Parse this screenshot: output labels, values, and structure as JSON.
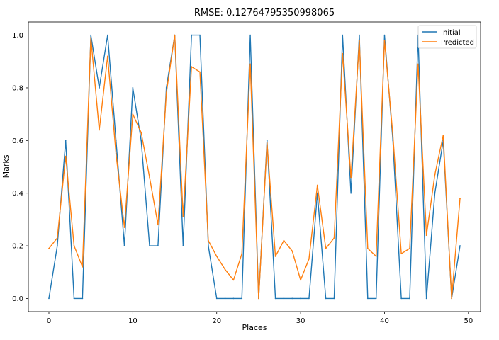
{
  "chart_data": {
    "type": "line",
    "title": "RMSE: 0.12764795350998065",
    "xlabel": "Places",
    "ylabel": "Marks",
    "xlim": [
      -2.45,
      51.45
    ],
    "ylim": [
      -0.05,
      1.05
    ],
    "xticks": [
      0,
      10,
      20,
      30,
      40,
      50
    ],
    "xtick_labels": [
      "0",
      "10",
      "20",
      "30",
      "40",
      "50"
    ],
    "yticks": [
      0.0,
      0.2,
      0.4,
      0.6,
      0.8,
      1.0
    ],
    "ytick_labels": [
      "0.0",
      "0.2",
      "0.4",
      "0.6",
      "0.8",
      "1.0"
    ],
    "grid": false,
    "legend_position": "top-right",
    "x": [
      0,
      1,
      2,
      3,
      4,
      5,
      6,
      7,
      8,
      9,
      10,
      11,
      12,
      13,
      14,
      15,
      16,
      17,
      18,
      19,
      20,
      21,
      22,
      23,
      24,
      25,
      26,
      27,
      28,
      29,
      30,
      31,
      32,
      33,
      34,
      35,
      36,
      37,
      38,
      39,
      40,
      41,
      42,
      43,
      44,
      45,
      46,
      47,
      48,
      49
    ],
    "series": [
      {
        "name": "Initial",
        "color": "#1f77b4",
        "values": [
          0.0,
          0.2,
          0.6,
          0.0,
          0.0,
          1.0,
          0.8,
          1.0,
          0.6,
          0.2,
          0.8,
          0.6,
          0.2,
          0.2,
          0.8,
          1.0,
          0.2,
          1.0,
          1.0,
          0.2,
          0.0,
          0.0,
          0.0,
          0.0,
          1.0,
          0.0,
          0.6,
          0.0,
          0.0,
          0.0,
          0.0,
          0.0,
          0.4,
          0.0,
          0.0,
          1.0,
          0.4,
          1.0,
          0.0,
          0.0,
          1.0,
          0.6,
          0.0,
          0.0,
          1.0,
          0.0,
          0.4,
          0.6,
          0.0,
          0.2
        ]
      },
      {
        "name": "Predicted",
        "color": "#ff7f0e",
        "values": [
          0.19,
          0.23,
          0.54,
          0.2,
          0.12,
          0.99,
          0.64,
          0.92,
          0.55,
          0.27,
          0.7,
          0.63,
          0.46,
          0.28,
          0.78,
          1.0,
          0.31,
          0.88,
          0.86,
          0.22,
          0.16,
          0.11,
          0.07,
          0.17,
          0.89,
          0.0,
          0.59,
          0.16,
          0.22,
          0.18,
          0.07,
          0.15,
          0.43,
          0.19,
          0.23,
          0.93,
          0.46,
          0.98,
          0.19,
          0.16,
          0.98,
          0.62,
          0.17,
          0.19,
          0.89,
          0.24,
          0.47,
          0.62,
          0.0,
          0.38
        ]
      }
    ]
  }
}
